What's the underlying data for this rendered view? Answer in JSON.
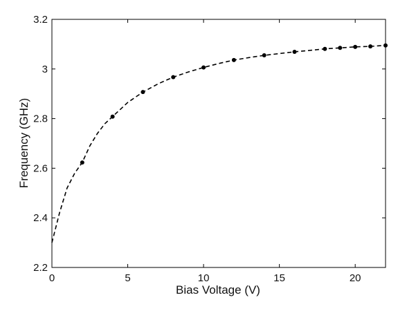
{
  "chart_data": {
    "type": "scatter",
    "title": "",
    "xlabel": "Bias Voltage (V)",
    "ylabel": "Frequency (GHz)",
    "xlim": [
      0,
      22
    ],
    "ylim": [
      2.2,
      3.2
    ],
    "xticks": [
      0,
      5,
      10,
      15,
      20
    ],
    "yticks": [
      2.2,
      2.4,
      2.6,
      2.8,
      3,
      3.2
    ],
    "xtick_labels": [
      "0",
      "5",
      "10",
      "15",
      "20"
    ],
    "ytick_labels": [
      "2.2",
      "2.4",
      "2.6",
      "2.8",
      "3",
      "3.2"
    ],
    "grid": false,
    "series": [
      {
        "name": "",
        "style": "markers",
        "marker_color": "#000000",
        "x": [
          2,
          4,
          6,
          8,
          10,
          12,
          14,
          16,
          18,
          19,
          20,
          21,
          22
        ],
        "y": [
          2.623,
          2.808,
          2.907,
          2.967,
          3.006,
          3.036,
          3.055,
          3.069,
          3.081,
          3.085,
          3.089,
          3.091,
          3.095
        ]
      },
      {
        "name": "",
        "style": "dashed-line",
        "line_color": "#000000",
        "x": [
          0,
          0.5,
          1,
          1.5,
          2,
          2.5,
          3,
          3.5,
          4,
          5,
          6,
          7,
          8,
          9,
          10,
          11,
          12,
          13,
          14,
          15,
          16,
          17,
          18,
          19,
          20,
          21,
          22
        ],
        "y": [
          2.3,
          2.42,
          2.52,
          2.58,
          2.623,
          2.69,
          2.74,
          2.78,
          2.808,
          2.865,
          2.907,
          2.94,
          2.967,
          2.988,
          3.006,
          3.022,
          3.036,
          3.046,
          3.055,
          3.062,
          3.069,
          3.075,
          3.081,
          3.085,
          3.089,
          3.091,
          3.095
        ]
      }
    ]
  }
}
